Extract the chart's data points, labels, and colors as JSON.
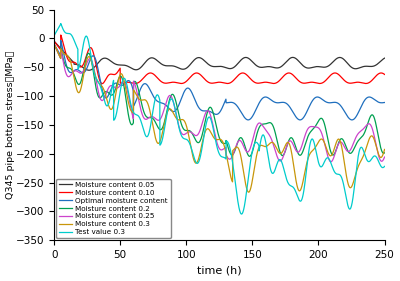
{
  "xlabel": "time (h)",
  "ylabel": "Q345 pipe bottom stress（MPa）",
  "xlim": [
    0,
    250
  ],
  "ylim": [
    -350,
    50
  ],
  "yticks": [
    50,
    0,
    -50,
    -100,
    -150,
    -200,
    -250,
    -300,
    -350
  ],
  "xticks": [
    0,
    50,
    100,
    150,
    200,
    250
  ],
  "legend_labels": [
    "Moisture content 0.05",
    "Moisture content 0.10",
    "Optimal moisture content",
    "Moisture content 0.2",
    "Moisture content 0.25",
    "Moisture content 0.3",
    "Test value 0.3"
  ],
  "line_colors": [
    "#333333",
    "#ff0000",
    "#1f6fbe",
    "#00a050",
    "#cc44cc",
    "#c8960a",
    "#00cccc"
  ]
}
